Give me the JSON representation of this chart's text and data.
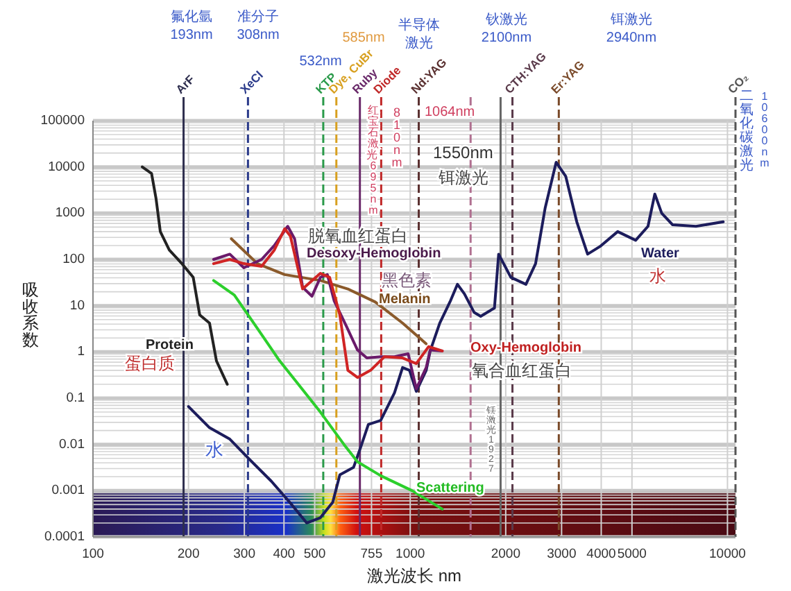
{
  "chart_data": {
    "type": "line",
    "xlabel": "激光波长 nm",
    "ylabel": "吸收系数",
    "log": "xy",
    "grid": true,
    "xlim": [
      100,
      10600
    ],
    "ylim": [
      0.0001,
      100000
    ],
    "xticks": [
      100,
      200,
      300,
      400,
      500,
      755,
      1000,
      2000,
      3000,
      4000,
      5000,
      10000
    ],
    "yticks": [
      0.0001,
      0.001,
      0.01,
      0.1,
      1,
      10,
      100,
      1000,
      10000,
      100000
    ],
    "series": [
      {
        "color": "#222222",
        "x": [
          143,
          153,
          158,
          163,
          174,
          191,
          207,
          217,
          233,
          245,
          265
        ],
        "values": [
          10000,
          7200,
          2100,
          400,
          160,
          80,
          41,
          6.3,
          4.2,
          0.64,
          0.2
        ]
      },
      {
        "color": "#1c1c5c",
        "x": [
          200,
          233,
          270,
          314,
          365,
          423,
          472,
          521,
          570,
          600,
          663,
          703,
          738,
          807,
          892,
          946,
          995,
          1045,
          1123,
          1156,
          1239,
          1341,
          1409,
          1482,
          1589,
          1668,
          1843,
          1900,
          2076,
          2316,
          2484,
          2663,
          2884,
          3091,
          3350,
          3624,
          3963,
          4508,
          5137,
          5617,
          5902,
          6205,
          6717,
          7955,
          9700
        ],
        "values": [
          0.066,
          0.023,
          0.013,
          0.0045,
          0.0016,
          0.0005,
          0.0002,
          0.00026,
          0.00056,
          0.0022,
          0.0032,
          0.01,
          0.027,
          0.033,
          0.13,
          0.46,
          0.4,
          0.14,
          0.4,
          1.05,
          4.2,
          13,
          29,
          18,
          7.2,
          5.9,
          8.9,
          130,
          41,
          29,
          81,
          1300,
          12600,
          6300,
          650,
          130,
          190,
          400,
          260,
          520,
          2600,
          1000,
          560,
          520,
          650
        ]
      },
      {
        "color": "#2ccf2c",
        "x": [
          240,
          279,
          330,
          387,
          444,
          521,
          618,
          682,
          808,
          1014,
          1262
        ],
        "values": [
          35,
          17,
          3.2,
          0.65,
          0.2,
          0.05,
          0.01,
          0.0042,
          0.0021,
          0.001,
          0.0004
        ]
      },
      {
        "color": "#8b5a2b",
        "x": [
          273,
          330,
          402,
          521,
          636,
          776,
          946,
          1122
        ],
        "values": [
          280,
          81,
          47,
          35,
          23,
          12,
          4.2,
          1.5
        ]
      },
      {
        "color": "#6a1a6a",
        "x": [
          240,
          270,
          299,
          340,
          373,
          411,
          432,
          458,
          490,
          521,
          548,
          576,
          629,
          682,
          730,
          808,
          892,
          985,
          1045,
          1123,
          1156,
          1262
        ],
        "values": [
          100,
          130,
          66,
          100,
          200,
          520,
          280,
          25,
          16,
          41,
          47,
          12.6,
          3.6,
          1.1,
          0.74,
          0.79,
          0.79,
          0.91,
          0.16,
          0.46,
          1.1,
          1.05
        ]
      },
      {
        "color": "#d02424",
        "x": [
          240,
          270,
          299,
          340,
          373,
          402,
          419,
          436,
          458,
          521,
          557,
          600,
          636,
          682,
          750,
          830,
          946,
          1045,
          1143,
          1262
        ],
        "values": [
          81,
          100,
          81,
          71,
          160,
          460,
          320,
          100,
          23,
          50,
          41,
          6.3,
          0.4,
          0.28,
          0.4,
          0.79,
          0.74,
          0.56,
          1.3,
          1.05
        ]
      }
    ],
    "ref_lines": [
      {
        "axis": "x",
        "value": 193,
        "label": "ArF",
        "color": "#2e2e4e",
        "line_style": "solid"
      },
      {
        "axis": "x",
        "value": 308,
        "label": "XeCl",
        "color": "#2a3a8a",
        "line_style": "dashed"
      },
      {
        "axis": "x",
        "value": 532,
        "label": "KTP",
        "color": "#2a9a4a",
        "line_style": "dashed"
      },
      {
        "axis": "x",
        "value": 585,
        "label": "Dye, CuBr",
        "color": "#d8a020",
        "line_style": "dashed"
      },
      {
        "axis": "x",
        "value": 694,
        "label": "Ruby",
        "color": "#6a2a6a",
        "line_style": "solid"
      },
      {
        "axis": "x",
        "value": 810,
        "label": "Diode",
        "color": "#c02828",
        "line_style": "dashed"
      },
      {
        "axis": "x",
        "value": 1064,
        "label": "Nd:YAG",
        "color": "#5a3030",
        "line_style": "dashed"
      },
      {
        "axis": "x",
        "value": 1550,
        "label": null,
        "color": "#b07090",
        "line_style": "dashed"
      },
      {
        "axis": "x",
        "value": 1927,
        "label": null,
        "color": "#666666",
        "line_style": "solid"
      },
      {
        "axis": "x",
        "value": 2100,
        "label": "CTH:YAG",
        "color": "#5a3a4a",
        "line_style": "dashed"
      },
      {
        "axis": "x",
        "value": 2940,
        "label": "Er:YAG",
        "color": "#7a4a2a",
        "line_style": "dashed"
      },
      {
        "axis": "x",
        "value": 10600,
        "label": "CO₂",
        "color": "#555555",
        "line_style": "dashed"
      }
    ],
    "annotations": [
      "氟化氩\n193nm",
      "准分子\n308nm",
      "532nm",
      "585nm",
      "半导体激光",
      "1064nm",
      "钬激光\n2100nm",
      "铒激光\n2940nm",
      "红宝石激光 695nm",
      "810nm",
      "铥激光1927",
      "二氧化碳激光",
      "10600nm",
      "1550nm",
      "铒激光",
      "脱氧血红蛋白",
      "Desoxy-Hemoglobin",
      "黑色素",
      "Melanin",
      "Oxy-Hemoglobin",
      "氧合血红蛋白",
      "Water",
      "水",
      "Protein",
      "蛋白质",
      "水",
      "Scattering"
    ]
  }
}
